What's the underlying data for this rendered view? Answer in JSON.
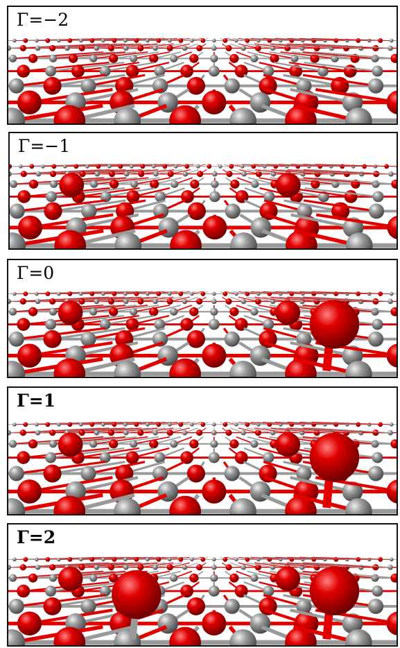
{
  "panels": [
    {
      "label": "Γ=−2",
      "bold": false,
      "variant": 0
    },
    {
      "label": "Γ=−1",
      "bold": false,
      "variant": 1
    },
    {
      "label": "Γ=0",
      "bold": false,
      "variant": 2
    },
    {
      "label": "Γ=1",
      "bold": true,
      "variant": 3
    },
    {
      "label": "Γ=2",
      "bold": true,
      "variant": 4
    }
  ],
  "colors": {
    "oxygen": "#e00000",
    "metal": "#9a9a9a",
    "border": "#111111"
  }
}
